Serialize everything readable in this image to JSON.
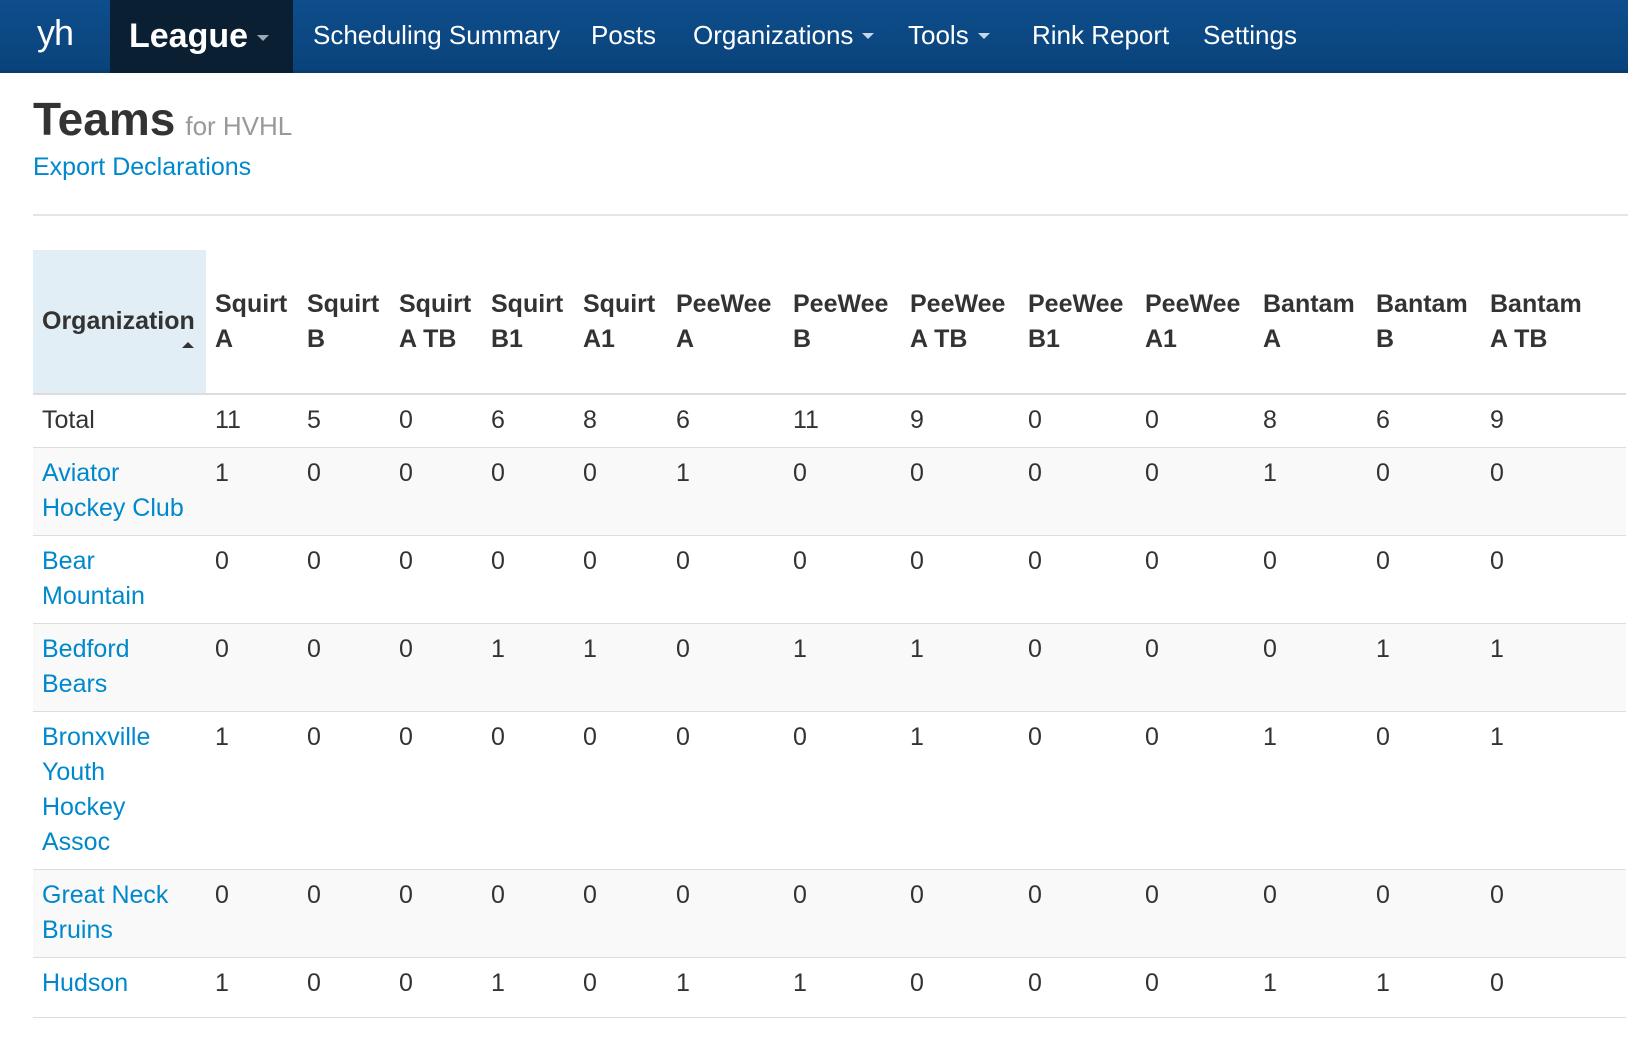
{
  "navbar": {
    "brand": "yh",
    "active": "League",
    "items": [
      {
        "label": "Scheduling Summary",
        "dropdown": false
      },
      {
        "label": "Posts",
        "dropdown": false
      },
      {
        "label": "Organizations",
        "dropdown": true
      },
      {
        "label": "Tools",
        "dropdown": true
      },
      {
        "label": "Rink Report",
        "dropdown": false
      },
      {
        "label": "Settings",
        "dropdown": false
      }
    ]
  },
  "header": {
    "title": "Teams",
    "subtitle": "for HVHL",
    "export_link": "Export Declarations"
  },
  "table": {
    "org_header": "Organization",
    "sort_icon": "sort-asc-icon",
    "columns": [
      [
        "Squirt",
        "A"
      ],
      [
        "Squirt",
        "B"
      ],
      [
        "Squirt",
        "A TB"
      ],
      [
        "Squirt",
        "B1"
      ],
      [
        "Squirt",
        "A1"
      ],
      [
        "PeeWee",
        "A"
      ],
      [
        "PeeWee",
        "B"
      ],
      [
        "PeeWee",
        "A TB"
      ],
      [
        "PeeWee",
        "B1"
      ],
      [
        "PeeWee",
        "A1"
      ],
      [
        "Bantam",
        "A"
      ],
      [
        "Bantam",
        "B"
      ],
      [
        "Bantam",
        "A TB"
      ]
    ],
    "total": {
      "label": "Total",
      "values": [
        "11",
        "5",
        "0",
        "6",
        "8",
        "6",
        "11",
        "9",
        "0",
        "0",
        "8",
        "6",
        "9"
      ]
    },
    "rows": [
      {
        "org": [
          "Aviator",
          "Hockey Club"
        ],
        "values": [
          "1",
          "0",
          "0",
          "0",
          "0",
          "1",
          "0",
          "0",
          "0",
          "0",
          "1",
          "0",
          "0"
        ]
      },
      {
        "org": [
          "Bear",
          "Mountain"
        ],
        "values": [
          "0",
          "0",
          "0",
          "0",
          "0",
          "0",
          "0",
          "0",
          "0",
          "0",
          "0",
          "0",
          "0"
        ]
      },
      {
        "org": [
          "Bedford",
          "Bears"
        ],
        "values": [
          "0",
          "0",
          "0",
          "1",
          "1",
          "0",
          "1",
          "1",
          "0",
          "0",
          "0",
          "1",
          "1"
        ]
      },
      {
        "org": [
          "Bronxville",
          "Youth",
          "Hockey",
          "Assoc"
        ],
        "values": [
          "1",
          "0",
          "0",
          "0",
          "0",
          "0",
          "0",
          "1",
          "0",
          "0",
          "1",
          "0",
          "1"
        ]
      },
      {
        "org": [
          "Great Neck",
          "Bruins"
        ],
        "values": [
          "0",
          "0",
          "0",
          "0",
          "0",
          "0",
          "0",
          "0",
          "0",
          "0",
          "0",
          "0",
          "0"
        ]
      },
      {
        "org": [
          "Hudson"
        ],
        "values": [
          "1",
          "0",
          "0",
          "1",
          "0",
          "1",
          "1",
          "0",
          "0",
          "0",
          "1",
          "1",
          "0"
        ]
      }
    ]
  },
  "colors": {
    "navbar": "#0e4e8c",
    "navbar_active": "#0b1f33",
    "link": "#0088cc",
    "sorted_header_bg": "#e2eef5"
  }
}
